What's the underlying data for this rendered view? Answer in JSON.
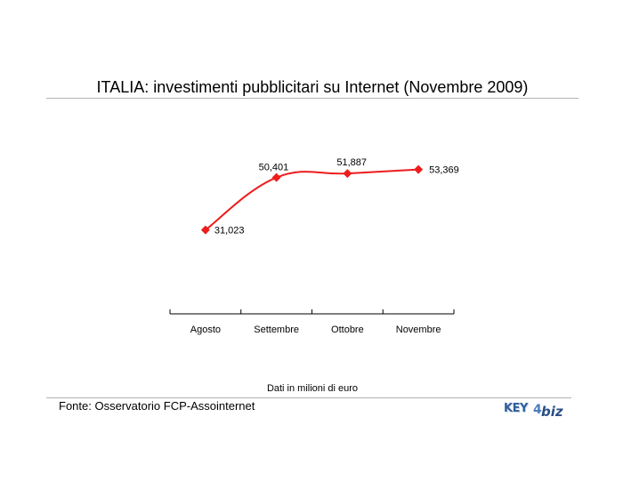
{
  "page": {
    "title": "ITALIA: investimenti pubblicitari su Internet (Novembre 2009)",
    "note": "Dati in milioni di euro",
    "source": "Fonte: Osservatorio FCP-Assointernet",
    "logo": "KEY4biz"
  },
  "chart_data": {
    "type": "line",
    "title": "ITALIA: investimenti pubblicitari su Internet (Novembre 2009)",
    "xlabel": "",
    "ylabel": "",
    "categories": [
      "Agosto",
      "Settembre",
      "Ottobre",
      "Novembre"
    ],
    "values": [
      31.023,
      50.401,
      51.887,
      53.369
    ],
    "value_labels": [
      "31,023",
      "50,401",
      "51,887",
      "53,369"
    ],
    "ylim": [
      0,
      70
    ],
    "grid": false,
    "color": "#ee1c1c",
    "marker": "diamond",
    "smooth": true
  }
}
